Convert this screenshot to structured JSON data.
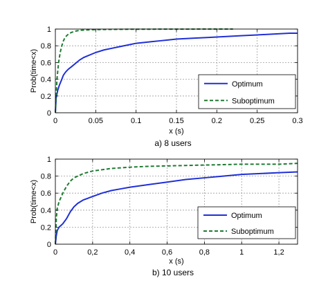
{
  "chart_data": [
    {
      "type": "line",
      "caption": "a) 8 users",
      "xlabel": "x (s)",
      "ylabel": "Prob(time<x)",
      "xlim": [
        0,
        0.3
      ],
      "ylim": [
        0,
        1
      ],
      "xticks": [
        0,
        0.05,
        0.1,
        0.15,
        0.2,
        0.25,
        0.3
      ],
      "xtick_labels": [
        "0",
        "0.05",
        "0.1",
        "0.15",
        "0.2",
        "0.25",
        "0.3"
      ],
      "yticks": [
        0,
        0.2,
        0.4,
        0.6,
        0.8,
        1
      ],
      "ytick_labels": [
        "0",
        "0.2",
        "0.4",
        "0.6",
        "0.8",
        "1"
      ],
      "grid": true,
      "legend_position": "bottom-right",
      "series": [
        {
          "name": "Optimum",
          "color": "#1f2fd6",
          "style": "solid",
          "x": [
            0,
            0.001,
            0.003,
            0.005,
            0.008,
            0.01,
            0.013,
            0.016,
            0.02,
            0.025,
            0.03,
            0.035,
            0.04,
            0.05,
            0.06,
            0.07,
            0.08,
            0.09,
            0.1,
            0.11,
            0.12,
            0.13,
            0.14,
            0.15,
            0.17,
            0.19,
            0.21,
            0.23,
            0.25,
            0.27,
            0.29,
            0.3
          ],
          "y": [
            0,
            0.18,
            0.27,
            0.33,
            0.4,
            0.45,
            0.49,
            0.52,
            0.55,
            0.59,
            0.63,
            0.66,
            0.68,
            0.72,
            0.75,
            0.77,
            0.79,
            0.81,
            0.83,
            0.84,
            0.85,
            0.86,
            0.87,
            0.88,
            0.89,
            0.9,
            0.91,
            0.92,
            0.93,
            0.94,
            0.95,
            0.95
          ]
        },
        {
          "name": "Suboptimum",
          "color": "#1e7a32",
          "style": "dashed",
          "x": [
            0,
            0.001,
            0.002,
            0.004,
            0.006,
            0.008,
            0.01,
            0.012,
            0.015,
            0.018,
            0.02,
            0.025,
            0.03,
            0.04,
            0.05,
            0.06,
            0.08,
            0.1,
            0.15,
            0.2,
            0.22
          ],
          "y": [
            0,
            0.2,
            0.4,
            0.6,
            0.72,
            0.8,
            0.86,
            0.9,
            0.93,
            0.95,
            0.96,
            0.975,
            0.985,
            0.99,
            0.993,
            0.995,
            0.997,
            0.998,
            0.999,
            1.0,
            1.0
          ]
        }
      ]
    },
    {
      "type": "line",
      "caption": "b) 10 users",
      "xlabel": "x (s)",
      "ylabel": "Prob(time<x)",
      "xlim": [
        0,
        1.3
      ],
      "ylim": [
        0,
        1
      ],
      "xticks": [
        0,
        0.2,
        0.4,
        0.6,
        0.8,
        1,
        1.2
      ],
      "xtick_labels": [
        "0",
        "0,2",
        "0,4",
        "0,6",
        "0,8",
        "1",
        "1,2"
      ],
      "yticks": [
        0,
        0.2,
        0.4,
        0.6,
        0.8,
        1
      ],
      "ytick_labels": [
        "0",
        "0.2",
        "0.4",
        "0.6",
        "0.8",
        "1"
      ],
      "grid": true,
      "legend_position": "bottom-right",
      "series": [
        {
          "name": "Optimum",
          "color": "#1f2fd6",
          "style": "solid",
          "x": [
            0,
            0.005,
            0.01,
            0.02,
            0.04,
            0.06,
            0.08,
            0.1,
            0.12,
            0.15,
            0.2,
            0.25,
            0.3,
            0.35,
            0.4,
            0.5,
            0.6,
            0.7,
            0.8,
            0.9,
            1.0,
            1.1,
            1.2,
            1.3
          ],
          "y": [
            0,
            0.1,
            0.16,
            0.2,
            0.24,
            0.3,
            0.38,
            0.44,
            0.48,
            0.52,
            0.56,
            0.6,
            0.63,
            0.65,
            0.67,
            0.7,
            0.73,
            0.76,
            0.78,
            0.8,
            0.82,
            0.83,
            0.84,
            0.85
          ]
        },
        {
          "name": "Suboptimum",
          "color": "#1e7a32",
          "style": "dashed",
          "x": [
            0,
            0.005,
            0.01,
            0.02,
            0.04,
            0.06,
            0.08,
            0.1,
            0.15,
            0.2,
            0.3,
            0.4,
            0.5,
            0.6,
            0.7,
            0.8,
            0.9,
            1.0,
            1.1,
            1.2,
            1.3
          ],
          "y": [
            0,
            0.3,
            0.42,
            0.5,
            0.6,
            0.68,
            0.74,
            0.78,
            0.83,
            0.86,
            0.89,
            0.905,
            0.915,
            0.92,
            0.925,
            0.93,
            0.935,
            0.94,
            0.94,
            0.94,
            0.95
          ]
        }
      ]
    }
  ]
}
